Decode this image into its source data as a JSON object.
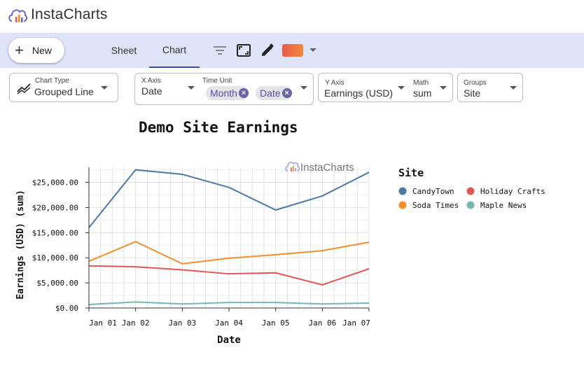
{
  "app": {
    "name": "InstaCharts"
  },
  "toolbar": {
    "new_label": "New",
    "tabs": [
      {
        "label": "Sheet"
      },
      {
        "label": "Chart"
      }
    ],
    "active_tab": "Chart"
  },
  "controls": {
    "chart_type": {
      "label": "Chart Type",
      "value": "Grouped Line"
    },
    "x_axis": {
      "label": "X Axis",
      "value": "Date"
    },
    "time_unit": {
      "label": "Time Unit",
      "chips": [
        "Month",
        "Date"
      ]
    },
    "y_axis": {
      "label": "Y Axis",
      "value": "Earnings (USD)"
    },
    "math": {
      "label": "Math",
      "value": "sum"
    },
    "groups": {
      "label": "Groups",
      "value": "Site"
    }
  },
  "watermark": "InstaCharts",
  "chart_data": {
    "type": "line",
    "title": "Demo Site Earnings",
    "xlabel": "Date",
    "ylabel": "Earnings (USD) (sum)",
    "x": [
      0,
      1,
      2,
      3,
      4,
      5,
      6
    ],
    "x_tick_labels": [
      "Jan 01",
      "Jan 02",
      "Jan 03",
      "Jan 04",
      "Jan 05",
      "Jan 06",
      "Jan 07"
    ],
    "ylim": [
      0,
      28000
    ],
    "y_ticks": [
      0,
      5000,
      10000,
      15000,
      20000,
      25000
    ],
    "y_tick_labels": [
      "$0.00",
      "$5,000.00",
      "$10,000.00",
      "$15,000.00",
      "$20,000.00",
      "$25,000.00"
    ],
    "grid": true,
    "legend_title": "Site",
    "legend_position": "right",
    "series": [
      {
        "name": "CandyTown",
        "color": "#4e79a7",
        "values": [
          16000,
          27500,
          26600,
          24000,
          19500,
          22300,
          27000
        ]
      },
      {
        "name": "Holiday Crafts",
        "color": "#e15759",
        "values": [
          8400,
          8200,
          7600,
          6800,
          7000,
          4600,
          7800
        ]
      },
      {
        "name": "Soda Times",
        "color": "#f28e2b",
        "values": [
          9300,
          13200,
          8800,
          9900,
          10600,
          11400,
          13100
        ]
      },
      {
        "name": "Maple News",
        "color": "#76b7b2",
        "values": [
          700,
          1200,
          800,
          1100,
          1100,
          800,
          1000
        ]
      }
    ]
  }
}
